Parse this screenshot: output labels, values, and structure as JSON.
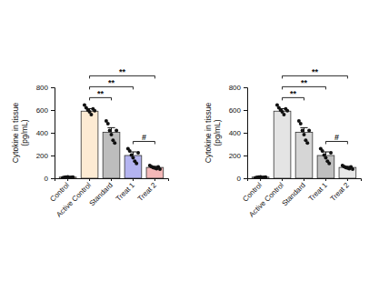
{
  "chart_data": [
    {
      "type": "bar",
      "y_label": [
        "Cytokine in tissue",
        "(pg/mL)"
      ],
      "categories": [
        "Control",
        "Active Control",
        "Standard",
        "Treat 1",
        "Treat 2"
      ],
      "values": [
        10,
        590,
        405,
        200,
        95
      ],
      "errors": [
        4,
        22,
        40,
        32,
        10
      ],
      "points": [
        [
          5,
          8,
          10,
          12,
          6,
          9,
          11
        ],
        [
          645,
          620,
          600,
          585,
          560,
          610,
          595
        ],
        [
          505,
          480,
          420,
          385,
          335,
          310,
          420
        ],
        [
          260,
          240,
          205,
          180,
          150,
          130,
          225
        ],
        [
          112,
          102,
          95,
          90,
          84,
          100,
          80
        ]
      ],
      "colors": [
        "#fdebd3",
        "#fdebd3",
        "#bdbdbd",
        "#b4b4f0",
        "#f4b8b8"
      ],
      "ylim": [
        0,
        800
      ],
      "yticks": [
        0,
        200,
        400,
        600,
        800
      ],
      "annotations": [
        {
          "text": "**",
          "between": [
            "Active Control",
            "Standard"
          ]
        },
        {
          "text": "**",
          "between": [
            "Active Control",
            "Treat 1"
          ]
        },
        {
          "text": "**",
          "between": [
            "Active Control",
            "Treat 2"
          ]
        },
        {
          "text": "#",
          "between": [
            "Treat 1",
            "Treat 2"
          ]
        }
      ]
    },
    {
      "type": "bar",
      "y_label": [
        "Cytokine in tissue",
        "(pg/mL)"
      ],
      "categories": [
        "Control",
        "Active Control",
        "Standard",
        "Treat 1",
        "Treat 2"
      ],
      "values": [
        10,
        590,
        405,
        200,
        95
      ],
      "errors": [
        4,
        22,
        40,
        32,
        10
      ],
      "points": [
        [
          5,
          8,
          10,
          12,
          6,
          9,
          11
        ],
        [
          645,
          620,
          600,
          585,
          560,
          610,
          595
        ],
        [
          505,
          480,
          420,
          385,
          335,
          310,
          420
        ],
        [
          260,
          240,
          205,
          180,
          150,
          130,
          225
        ],
        [
          112,
          102,
          95,
          90,
          84,
          100,
          80
        ]
      ],
      "colors": [
        "#eeeeee",
        "#e4e4e4",
        "#d6d6d6",
        "#bfbfbf",
        "#e8e8e8"
      ],
      "ylim": [
        0,
        800
      ],
      "yticks": [
        0,
        200,
        400,
        600,
        800
      ],
      "annotations": [
        {
          "text": "**",
          "between": [
            "Active Control",
            "Standard"
          ]
        },
        {
          "text": "**",
          "between": [
            "Active Control",
            "Treat 1"
          ]
        },
        {
          "text": "**",
          "between": [
            "Active Control",
            "Treat 2"
          ]
        },
        {
          "text": "#",
          "between": [
            "Treat 1",
            "Treat 2"
          ]
        }
      ]
    }
  ]
}
